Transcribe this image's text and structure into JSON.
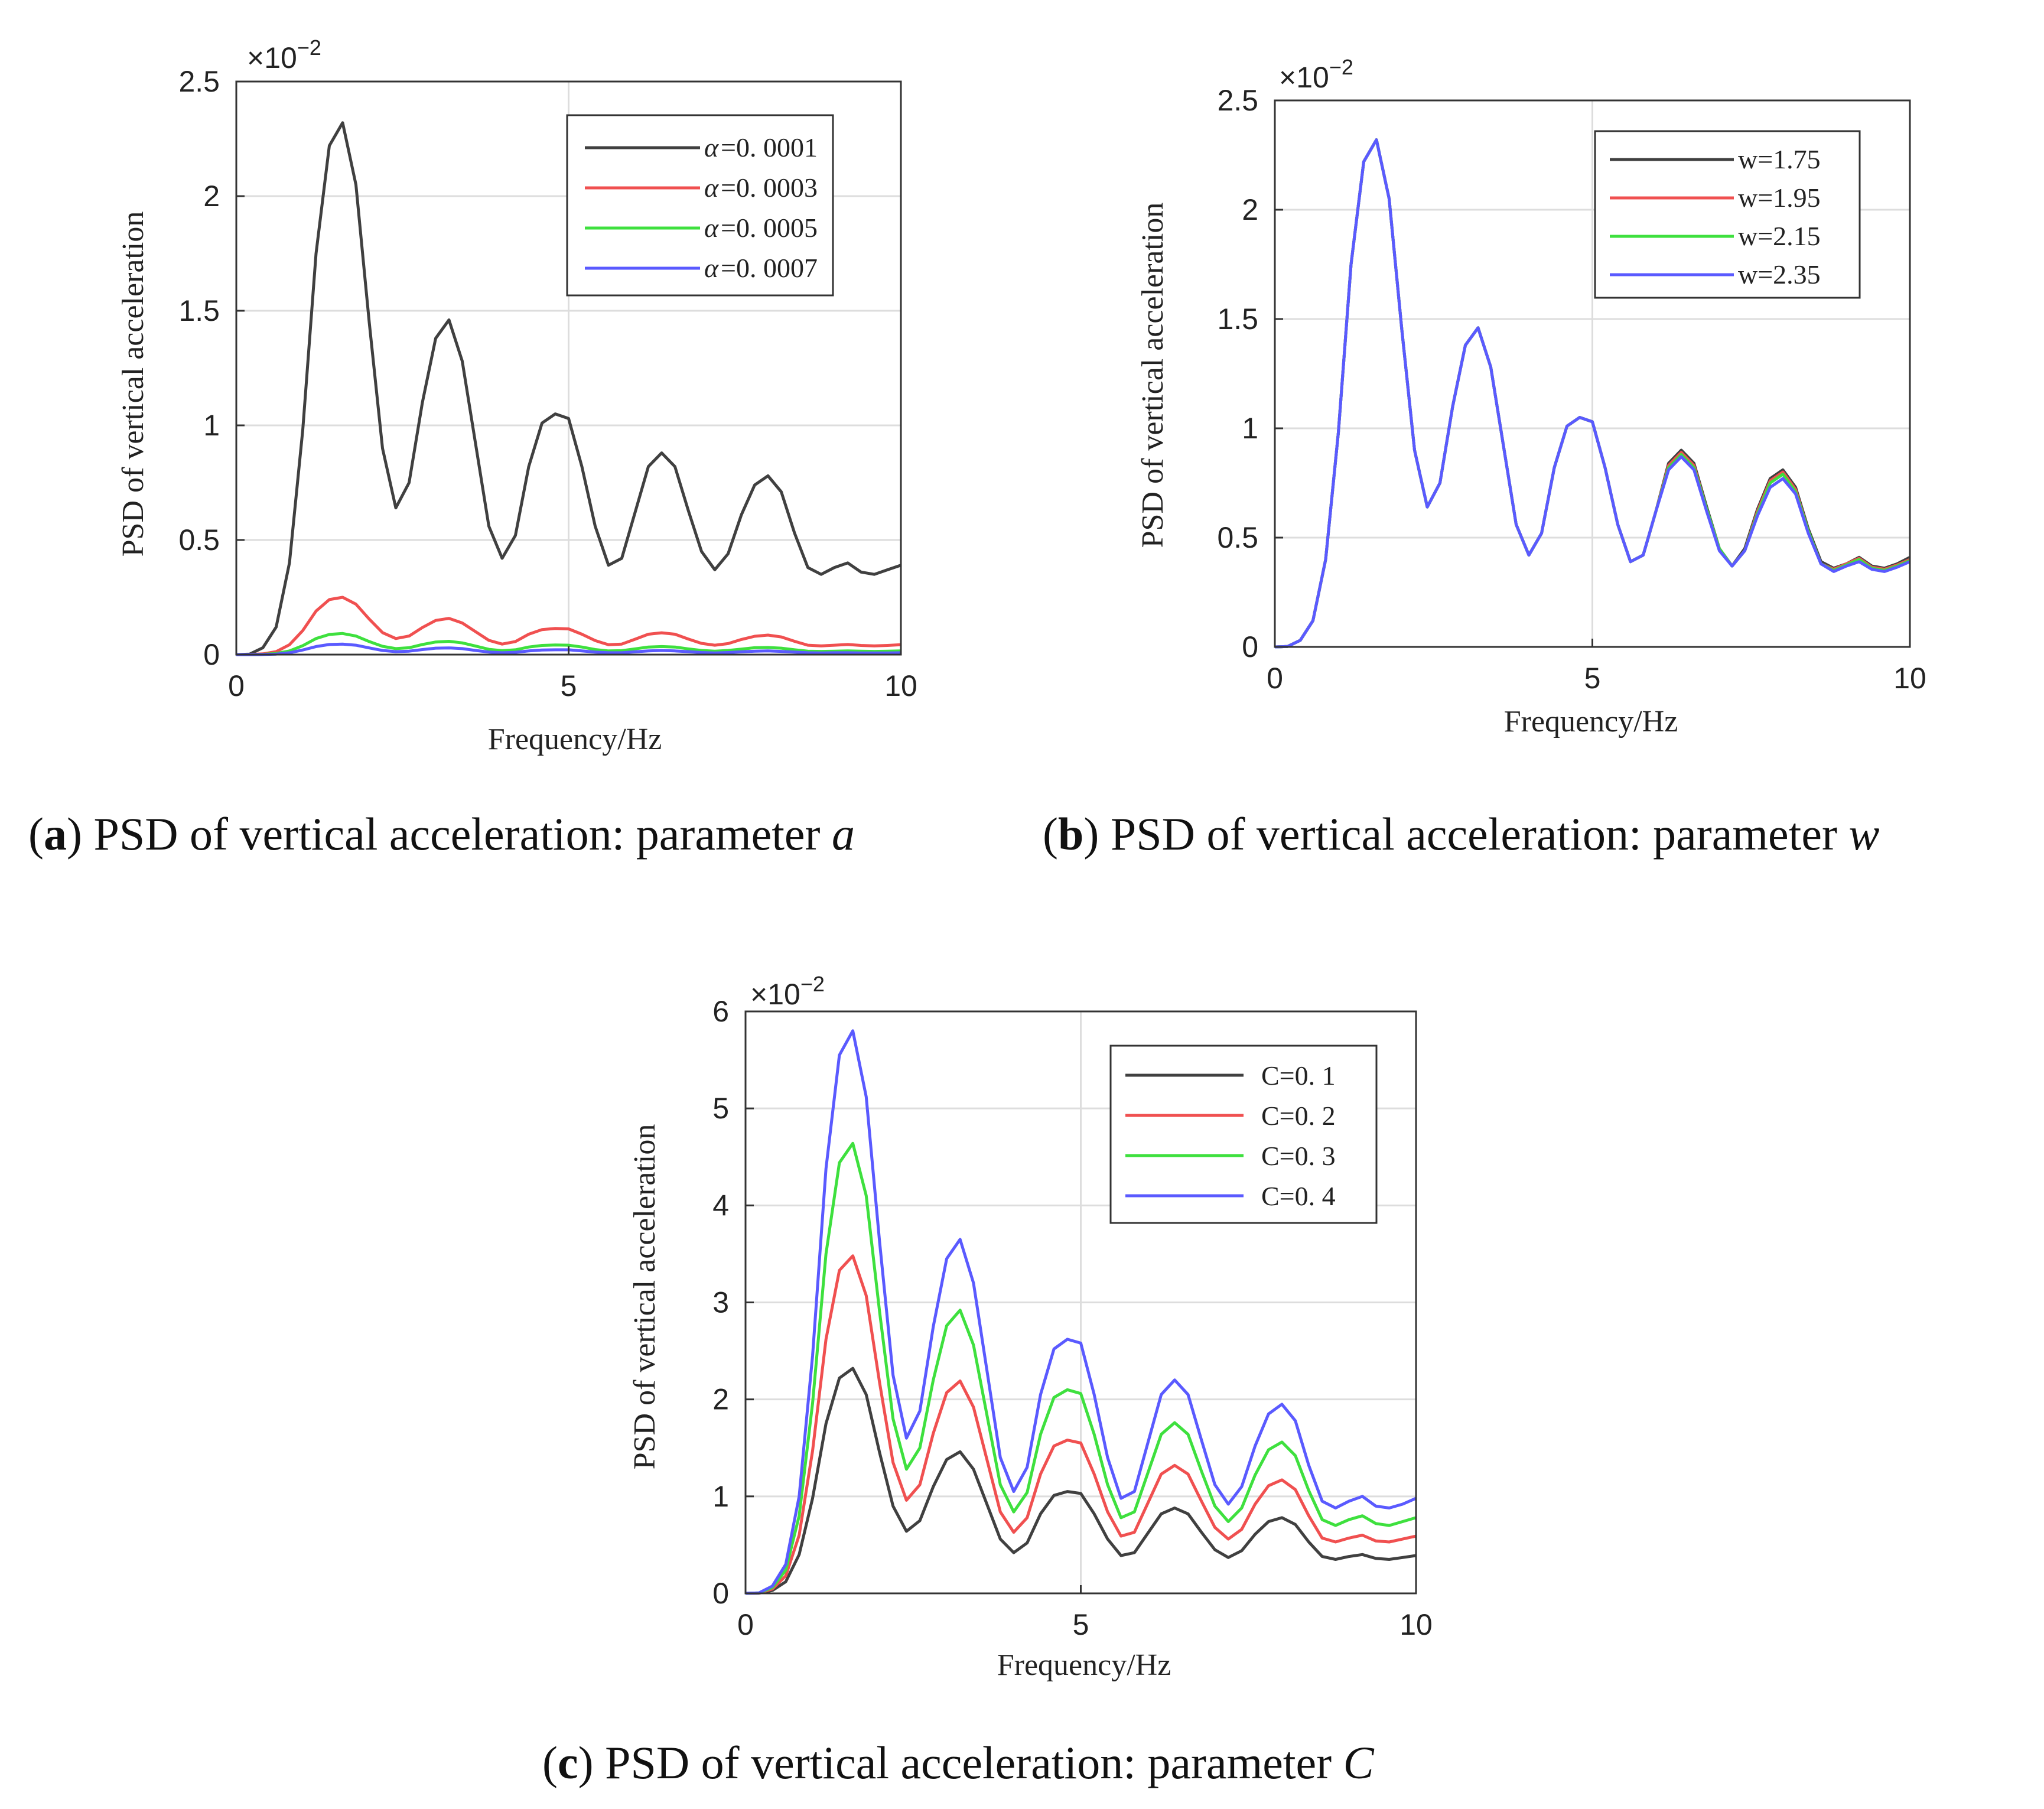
{
  "figure": {
    "panels": [
      {
        "id": "a",
        "caption_letter": "a",
        "caption_text": "PSD of vertical acceleration: parameter",
        "caption_param": "a",
        "exponent": "×10",
        "exponent_power": "−2",
        "legend_prefix": "α"
      },
      {
        "id": "b",
        "caption_letter": "b",
        "caption_text": "PSD of vertical acceleration: parameter",
        "caption_param": "w",
        "exponent": "×10",
        "exponent_power": "−2",
        "legend_prefix": ""
      },
      {
        "id": "c",
        "caption_letter": "c",
        "caption_text": "PSD of vertical acceleration: parameter",
        "caption_param": "C",
        "exponent": "×10",
        "exponent_power": "−2",
        "legend_prefix": ""
      }
    ]
  },
  "chart_data": [
    {
      "type": "line",
      "title": "",
      "xlabel": "Frequency/Hz",
      "ylabel": "PSD of vertical acceleration",
      "xlim": [
        0,
        10
      ],
      "ylim": [
        0,
        2.5
      ],
      "y_scale_note": "×10^-2",
      "xticks": [
        0,
        5,
        10
      ],
      "yticks": [
        0,
        0.5,
        1,
        1.5,
        2,
        2.5
      ],
      "grid": true,
      "legend_position": "top-right",
      "x": [
        0,
        0.2,
        0.4,
        0.6,
        0.8,
        1.0,
        1.2,
        1.4,
        1.6,
        1.8,
        2.0,
        2.2,
        2.4,
        2.6,
        2.8,
        3.0,
        3.2,
        3.4,
        3.6,
        3.8,
        4.0,
        4.2,
        4.4,
        4.6,
        4.8,
        5.0,
        5.2,
        5.4,
        5.6,
        5.8,
        6.0,
        6.2,
        6.4,
        6.6,
        6.8,
        7.0,
        7.2,
        7.4,
        7.6,
        7.8,
        8.0,
        8.2,
        8.4,
        8.6,
        8.8,
        9.0,
        9.2,
        9.4,
        9.6,
        9.8,
        10.0
      ],
      "series": [
        {
          "name": "α=0. 0001",
          "label": "=0. 0001",
          "color": "#404040",
          "values": [
            0,
            0.002,
            0.03,
            0.12,
            0.4,
            0.98,
            1.75,
            2.22,
            2.32,
            2.05,
            1.45,
            0.9,
            0.64,
            0.75,
            1.1,
            1.38,
            1.46,
            1.28,
            0.92,
            0.56,
            0.42,
            0.52,
            0.82,
            1.01,
            1.05,
            1.03,
            0.82,
            0.56,
            0.39,
            0.42,
            0.62,
            0.82,
            0.88,
            0.82,
            0.63,
            0.45,
            0.37,
            0.44,
            0.61,
            0.74,
            0.78,
            0.71,
            0.53,
            0.38,
            0.35,
            0.38,
            0.4,
            0.36,
            0.35,
            0.37,
            0.39
          ]
        },
        {
          "name": "α=0. 0003",
          "label": "=0. 0003",
          "color": "#f05050",
          "values": [
            0,
            0.0002,
            0.003,
            0.013,
            0.043,
            0.105,
            0.19,
            0.24,
            0.25,
            0.22,
            0.155,
            0.096,
            0.07,
            0.081,
            0.118,
            0.149,
            0.158,
            0.138,
            0.1,
            0.062,
            0.046,
            0.057,
            0.089,
            0.109,
            0.114,
            0.112,
            0.089,
            0.061,
            0.043,
            0.046,
            0.067,
            0.089,
            0.095,
            0.089,
            0.068,
            0.049,
            0.041,
            0.048,
            0.066,
            0.08,
            0.085,
            0.077,
            0.058,
            0.041,
            0.038,
            0.041,
            0.044,
            0.04,
            0.038,
            0.04,
            0.043
          ]
        },
        {
          "name": "α=0. 0005",
          "label": "=0. 0005",
          "color": "#3ee03e",
          "values": [
            0,
            0.0001,
            0.001,
            0.005,
            0.016,
            0.039,
            0.07,
            0.088,
            0.092,
            0.081,
            0.057,
            0.036,
            0.026,
            0.03,
            0.044,
            0.055,
            0.058,
            0.051,
            0.037,
            0.023,
            0.017,
            0.021,
            0.033,
            0.04,
            0.042,
            0.041,
            0.033,
            0.022,
            0.016,
            0.017,
            0.025,
            0.033,
            0.035,
            0.033,
            0.025,
            0.018,
            0.015,
            0.018,
            0.024,
            0.03,
            0.031,
            0.028,
            0.021,
            0.015,
            0.014,
            0.015,
            0.016,
            0.015,
            0.014,
            0.015,
            0.016
          ]
        },
        {
          "name": "α=0. 0007",
          "label": "=0. 0007",
          "color": "#5a5aff",
          "values": [
            0,
            0.0001,
            0.0006,
            0.002,
            0.008,
            0.02,
            0.035,
            0.044,
            0.046,
            0.041,
            0.029,
            0.018,
            0.013,
            0.015,
            0.022,
            0.028,
            0.029,
            0.026,
            0.018,
            0.011,
            0.008,
            0.01,
            0.016,
            0.02,
            0.021,
            0.021,
            0.016,
            0.011,
            0.008,
            0.008,
            0.012,
            0.016,
            0.018,
            0.016,
            0.013,
            0.009,
            0.007,
            0.009,
            0.012,
            0.015,
            0.016,
            0.014,
            0.011,
            0.008,
            0.007,
            0.008,
            0.008,
            0.007,
            0.007,
            0.007,
            0.008
          ]
        }
      ]
    },
    {
      "type": "line",
      "title": "",
      "xlabel": "Frequency/Hz",
      "ylabel": "PSD of vertical acceleration",
      "xlim": [
        0,
        10
      ],
      "ylim": [
        0,
        2.5
      ],
      "y_scale_note": "×10^-2",
      "xticks": [
        0,
        5,
        10
      ],
      "yticks": [
        0,
        0.5,
        1,
        1.5,
        2,
        2.5
      ],
      "grid": true,
      "legend_position": "top-right",
      "x": [
        0,
        0.2,
        0.4,
        0.6,
        0.8,
        1.0,
        1.2,
        1.4,
        1.6,
        1.8,
        2.0,
        2.2,
        2.4,
        2.6,
        2.8,
        3.0,
        3.2,
        3.4,
        3.6,
        3.8,
        4.0,
        4.2,
        4.4,
        4.6,
        4.8,
        5.0,
        5.2,
        5.4,
        5.6,
        5.8,
        6.0,
        6.2,
        6.4,
        6.6,
        6.8,
        7.0,
        7.2,
        7.4,
        7.6,
        7.8,
        8.0,
        8.2,
        8.4,
        8.6,
        8.8,
        9.0,
        9.2,
        9.4,
        9.6,
        9.8,
        10.0
      ],
      "series": [
        {
          "name": "w=1.75",
          "label": "w=1.75",
          "color": "#404040",
          "values": [
            0,
            0.002,
            0.03,
            0.12,
            0.4,
            0.98,
            1.75,
            2.22,
            2.32,
            2.05,
            1.45,
            0.9,
            0.64,
            0.75,
            1.1,
            1.38,
            1.46,
            1.28,
            0.92,
            0.56,
            0.42,
            0.52,
            0.82,
            1.01,
            1.05,
            1.03,
            0.82,
            0.56,
            0.39,
            0.42,
            0.62,
            0.84,
            0.9,
            0.84,
            0.64,
            0.45,
            0.37,
            0.45,
            0.63,
            0.77,
            0.81,
            0.73,
            0.54,
            0.39,
            0.36,
            0.38,
            0.41,
            0.37,
            0.36,
            0.38,
            0.41
          ]
        },
        {
          "name": "w=1.95",
          "label": "w=1.95",
          "color": "#f05050",
          "values": [
            0,
            0.002,
            0.03,
            0.12,
            0.4,
            0.98,
            1.75,
            2.22,
            2.32,
            2.05,
            1.45,
            0.9,
            0.64,
            0.75,
            1.1,
            1.38,
            1.46,
            1.28,
            0.92,
            0.56,
            0.42,
            0.52,
            0.82,
            1.01,
            1.05,
            1.03,
            0.82,
            0.56,
            0.39,
            0.42,
            0.62,
            0.83,
            0.89,
            0.83,
            0.63,
            0.45,
            0.37,
            0.44,
            0.62,
            0.76,
            0.8,
            0.72,
            0.53,
            0.38,
            0.355,
            0.38,
            0.405,
            0.365,
            0.355,
            0.375,
            0.4
          ]
        },
        {
          "name": "w=2.15",
          "label": "w=2.15",
          "color": "#3ee03e",
          "values": [
            0,
            0.002,
            0.03,
            0.12,
            0.4,
            0.98,
            1.75,
            2.22,
            2.32,
            2.05,
            1.45,
            0.9,
            0.64,
            0.75,
            1.1,
            1.38,
            1.46,
            1.28,
            0.92,
            0.56,
            0.42,
            0.52,
            0.82,
            1.01,
            1.05,
            1.03,
            0.82,
            0.56,
            0.39,
            0.42,
            0.62,
            0.82,
            0.88,
            0.82,
            0.63,
            0.45,
            0.37,
            0.44,
            0.61,
            0.75,
            0.79,
            0.71,
            0.53,
            0.38,
            0.35,
            0.375,
            0.4,
            0.36,
            0.35,
            0.37,
            0.395
          ]
        },
        {
          "name": "w=2.35",
          "label": "w=2.35",
          "color": "#5a5aff",
          "values": [
            0,
            0.002,
            0.03,
            0.12,
            0.4,
            0.98,
            1.75,
            2.22,
            2.32,
            2.05,
            1.45,
            0.9,
            0.64,
            0.75,
            1.1,
            1.38,
            1.46,
            1.28,
            0.92,
            0.56,
            0.42,
            0.52,
            0.82,
            1.01,
            1.05,
            1.03,
            0.82,
            0.56,
            0.39,
            0.42,
            0.62,
            0.81,
            0.87,
            0.81,
            0.62,
            0.44,
            0.37,
            0.44,
            0.6,
            0.73,
            0.77,
            0.7,
            0.52,
            0.38,
            0.345,
            0.37,
            0.39,
            0.355,
            0.345,
            0.365,
            0.39
          ]
        }
      ]
    },
    {
      "type": "line",
      "title": "",
      "xlabel": "Frequency/Hz",
      "ylabel": "PSD of vertical acceleration",
      "xlim": [
        0,
        10
      ],
      "ylim": [
        0,
        6
      ],
      "y_scale_note": "×10^-2",
      "xticks": [
        0,
        5,
        10
      ],
      "yticks": [
        0,
        1,
        2,
        3,
        4,
        5,
        6
      ],
      "grid": true,
      "legend_position": "top-right",
      "x": [
        0,
        0.2,
        0.4,
        0.6,
        0.8,
        1.0,
        1.2,
        1.4,
        1.6,
        1.8,
        2.0,
        2.2,
        2.4,
        2.6,
        2.8,
        3.0,
        3.2,
        3.4,
        3.6,
        3.8,
        4.0,
        4.2,
        4.4,
        4.6,
        4.8,
        5.0,
        5.2,
        5.4,
        5.6,
        5.8,
        6.0,
        6.2,
        6.4,
        6.6,
        6.8,
        7.0,
        7.2,
        7.4,
        7.6,
        7.8,
        8.0,
        8.2,
        8.4,
        8.6,
        8.8,
        9.0,
        9.2,
        9.4,
        9.6,
        9.8,
        10.0
      ],
      "series": [
        {
          "name": "C=0. 1",
          "label": "C=0. 1",
          "color": "#404040",
          "values": [
            0,
            0.002,
            0.03,
            0.12,
            0.4,
            0.98,
            1.75,
            2.22,
            2.32,
            2.05,
            1.45,
            0.9,
            0.64,
            0.75,
            1.1,
            1.38,
            1.46,
            1.28,
            0.92,
            0.56,
            0.42,
            0.52,
            0.82,
            1.01,
            1.05,
            1.03,
            0.82,
            0.56,
            0.39,
            0.42,
            0.62,
            0.82,
            0.88,
            0.82,
            0.63,
            0.45,
            0.37,
            0.44,
            0.61,
            0.74,
            0.78,
            0.71,
            0.53,
            0.38,
            0.35,
            0.38,
            0.4,
            0.36,
            0.35,
            0.37,
            0.39
          ]
        },
        {
          "name": "C=0. 2",
          "label": "C=0. 2",
          "color": "#f05050",
          "values": [
            0,
            0.003,
            0.045,
            0.18,
            0.6,
            1.47,
            2.62,
            3.33,
            3.48,
            3.07,
            2.17,
            1.35,
            0.96,
            1.12,
            1.65,
            2.07,
            2.19,
            1.92,
            1.38,
            0.84,
            0.63,
            0.78,
            1.23,
            1.52,
            1.58,
            1.55,
            1.23,
            0.84,
            0.59,
            0.63,
            0.93,
            1.23,
            1.32,
            1.23,
            0.95,
            0.68,
            0.56,
            0.66,
            0.92,
            1.11,
            1.17,
            1.07,
            0.8,
            0.57,
            0.53,
            0.57,
            0.6,
            0.54,
            0.53,
            0.56,
            0.59
          ]
        },
        {
          "name": "C=0. 3",
          "label": "C=0. 3",
          "color": "#3ee03e",
          "values": [
            0,
            0.004,
            0.06,
            0.24,
            0.8,
            1.96,
            3.5,
            4.44,
            4.64,
            4.1,
            2.9,
            1.8,
            1.28,
            1.5,
            2.2,
            2.76,
            2.92,
            2.56,
            1.84,
            1.12,
            0.84,
            1.04,
            1.64,
            2.02,
            2.1,
            2.06,
            1.64,
            1.12,
            0.78,
            0.84,
            1.24,
            1.64,
            1.76,
            1.64,
            1.26,
            0.9,
            0.74,
            0.88,
            1.22,
            1.48,
            1.56,
            1.42,
            1.06,
            0.76,
            0.7,
            0.76,
            0.8,
            0.72,
            0.7,
            0.74,
            0.78
          ]
        },
        {
          "name": "C=0. 4",
          "label": "C=0. 4",
          "color": "#5a5aff",
          "values": [
            0,
            0.005,
            0.075,
            0.3,
            1.0,
            2.45,
            4.38,
            5.55,
            5.8,
            5.12,
            3.62,
            2.25,
            1.6,
            1.88,
            2.75,
            3.45,
            3.65,
            3.2,
            2.3,
            1.4,
            1.05,
            1.3,
            2.05,
            2.52,
            2.62,
            2.58,
            2.05,
            1.4,
            0.98,
            1.05,
            1.55,
            2.05,
            2.2,
            2.05,
            1.58,
            1.12,
            0.92,
            1.1,
            1.52,
            1.85,
            1.95,
            1.78,
            1.32,
            0.95,
            0.88,
            0.95,
            1.0,
            0.9,
            0.88,
            0.92,
            0.98
          ]
        }
      ]
    }
  ]
}
